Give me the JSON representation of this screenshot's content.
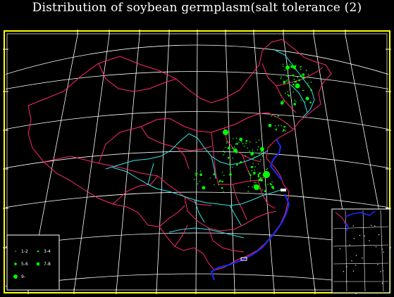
{
  "title": "Distribution of soybean germplasm(salt tolerance (2)",
  "colors": {
    "background": "#000000",
    "frame": "#ffff00",
    "graticule": "#ffffff",
    "boundaries": "#ff2a6a",
    "rivers": "#33e5e5",
    "coast": "#1a2bff",
    "points": "#00ff00"
  },
  "legend": {
    "items": [
      {
        "label": "1-2",
        "size": 1
      },
      {
        "label": "3-4",
        "size": 2
      },
      {
        "label": "5-6",
        "size": 3
      },
      {
        "label": "7-8",
        "size": 4
      },
      {
        "label": "9-",
        "size": 5
      }
    ]
  },
  "inset": {
    "name": "South China Sea islands inset"
  }
}
